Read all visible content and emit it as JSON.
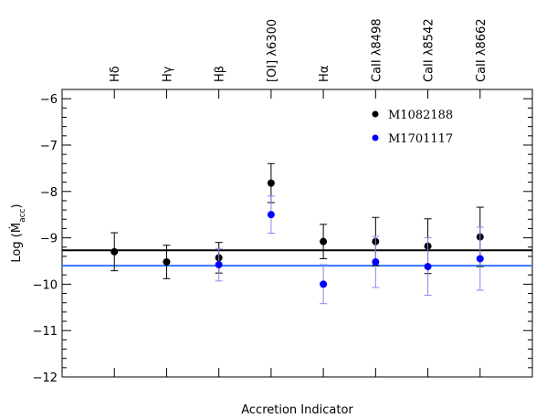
{
  "chart_data": {
    "type": "scatter",
    "xlabel": "Accretion Indicator",
    "ylabel_main": "Log (",
    "ylabel_symbol": "Ṁ",
    "ylabel_sub": "acc",
    "ylabel_close": ")",
    "ylim": [
      -12,
      -5.8
    ],
    "yticks": [
      -12,
      -11,
      -10,
      -9,
      -8,
      -7,
      -6
    ],
    "ytick_labels": [
      "−12",
      "−11",
      "−10",
      "−9",
      "−8",
      "−7",
      "−6"
    ],
    "categories": [
      "Hδ",
      "Hγ",
      "Hβ",
      "[OI] λ6300",
      "Hα",
      "CaII λ8498",
      "CaII λ8542",
      "CaII λ8662"
    ],
    "legend_position": "top-right",
    "series": [
      {
        "name": "M1082188",
        "color": "#000000",
        "errcolor": "#000000",
        "values": [
          -9.3,
          -9.52,
          -9.43,
          -7.82,
          -9.08,
          -9.08,
          -9.18,
          -8.98
        ],
        "err_low": [
          0.41,
          0.36,
          0.33,
          0.42,
          0.37,
          0.52,
          0.59,
          0.64
        ],
        "err_high": [
          0.41,
          0.36,
          0.33,
          0.42,
          0.37,
          0.52,
          0.59,
          0.64
        ],
        "mean": -9.27,
        "mean_color": "#000000"
      },
      {
        "name": "M1701117",
        "color": "#0000ff",
        "errcolor": "#8888ee",
        "values": [
          -9.6,
          -9.55,
          -9.58,
          -8.5,
          -10.0,
          -9.52,
          -9.62,
          -9.45
        ],
        "err_low": [
          0.0,
          0.0,
          0.35,
          0.4,
          0.42,
          0.55,
          0.62,
          0.68
        ],
        "err_high": [
          0.0,
          0.0,
          0.35,
          0.4,
          0.42,
          0.55,
          0.62,
          0.68
        ],
        "missing": [
          true,
          true,
          false,
          false,
          false,
          false,
          false,
          false
        ],
        "mean": -9.6,
        "mean_color": "#3377ff"
      }
    ]
  }
}
